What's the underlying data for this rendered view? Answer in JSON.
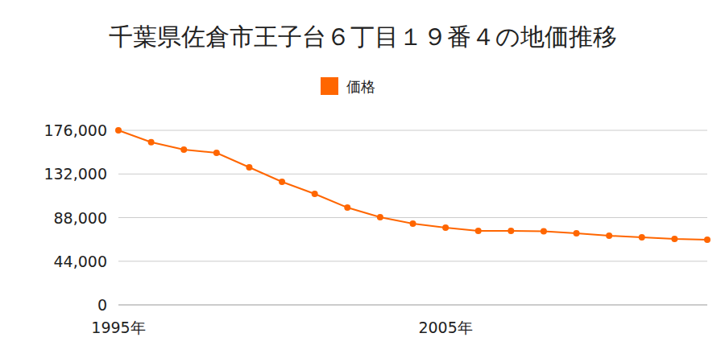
{
  "chart_data": {
    "type": "line",
    "title": "千葉県佐倉市王子台６丁目１９番４の地価推移",
    "categories": [
      "1995年",
      null,
      null,
      null,
      null,
      null,
      null,
      null,
      null,
      null,
      "2005年",
      null,
      null,
      null,
      null,
      null,
      null,
      null,
      null
    ],
    "series": [
      {
        "name": "価格",
        "color": "#ff6600",
        "marker": "circle",
        "values": [
          176000,
          164000,
          156500,
          153300,
          138700,
          124100,
          111900,
          98100,
          88400,
          81900,
          77900,
          74600,
          74600,
          74300,
          72200,
          69700,
          68100,
          66500,
          65700
        ]
      }
    ],
    "ylim": [
      0,
      176000
    ],
    "yticks": [
      {
        "value": 0,
        "label": "0"
      },
      {
        "value": 44000,
        "label": "44,000"
      },
      {
        "value": 88000,
        "label": "88,000"
      },
      {
        "value": 132000,
        "label": "132,000"
      },
      {
        "value": 176000,
        "label": "176,000"
      }
    ],
    "grid": true,
    "legend": "top"
  }
}
